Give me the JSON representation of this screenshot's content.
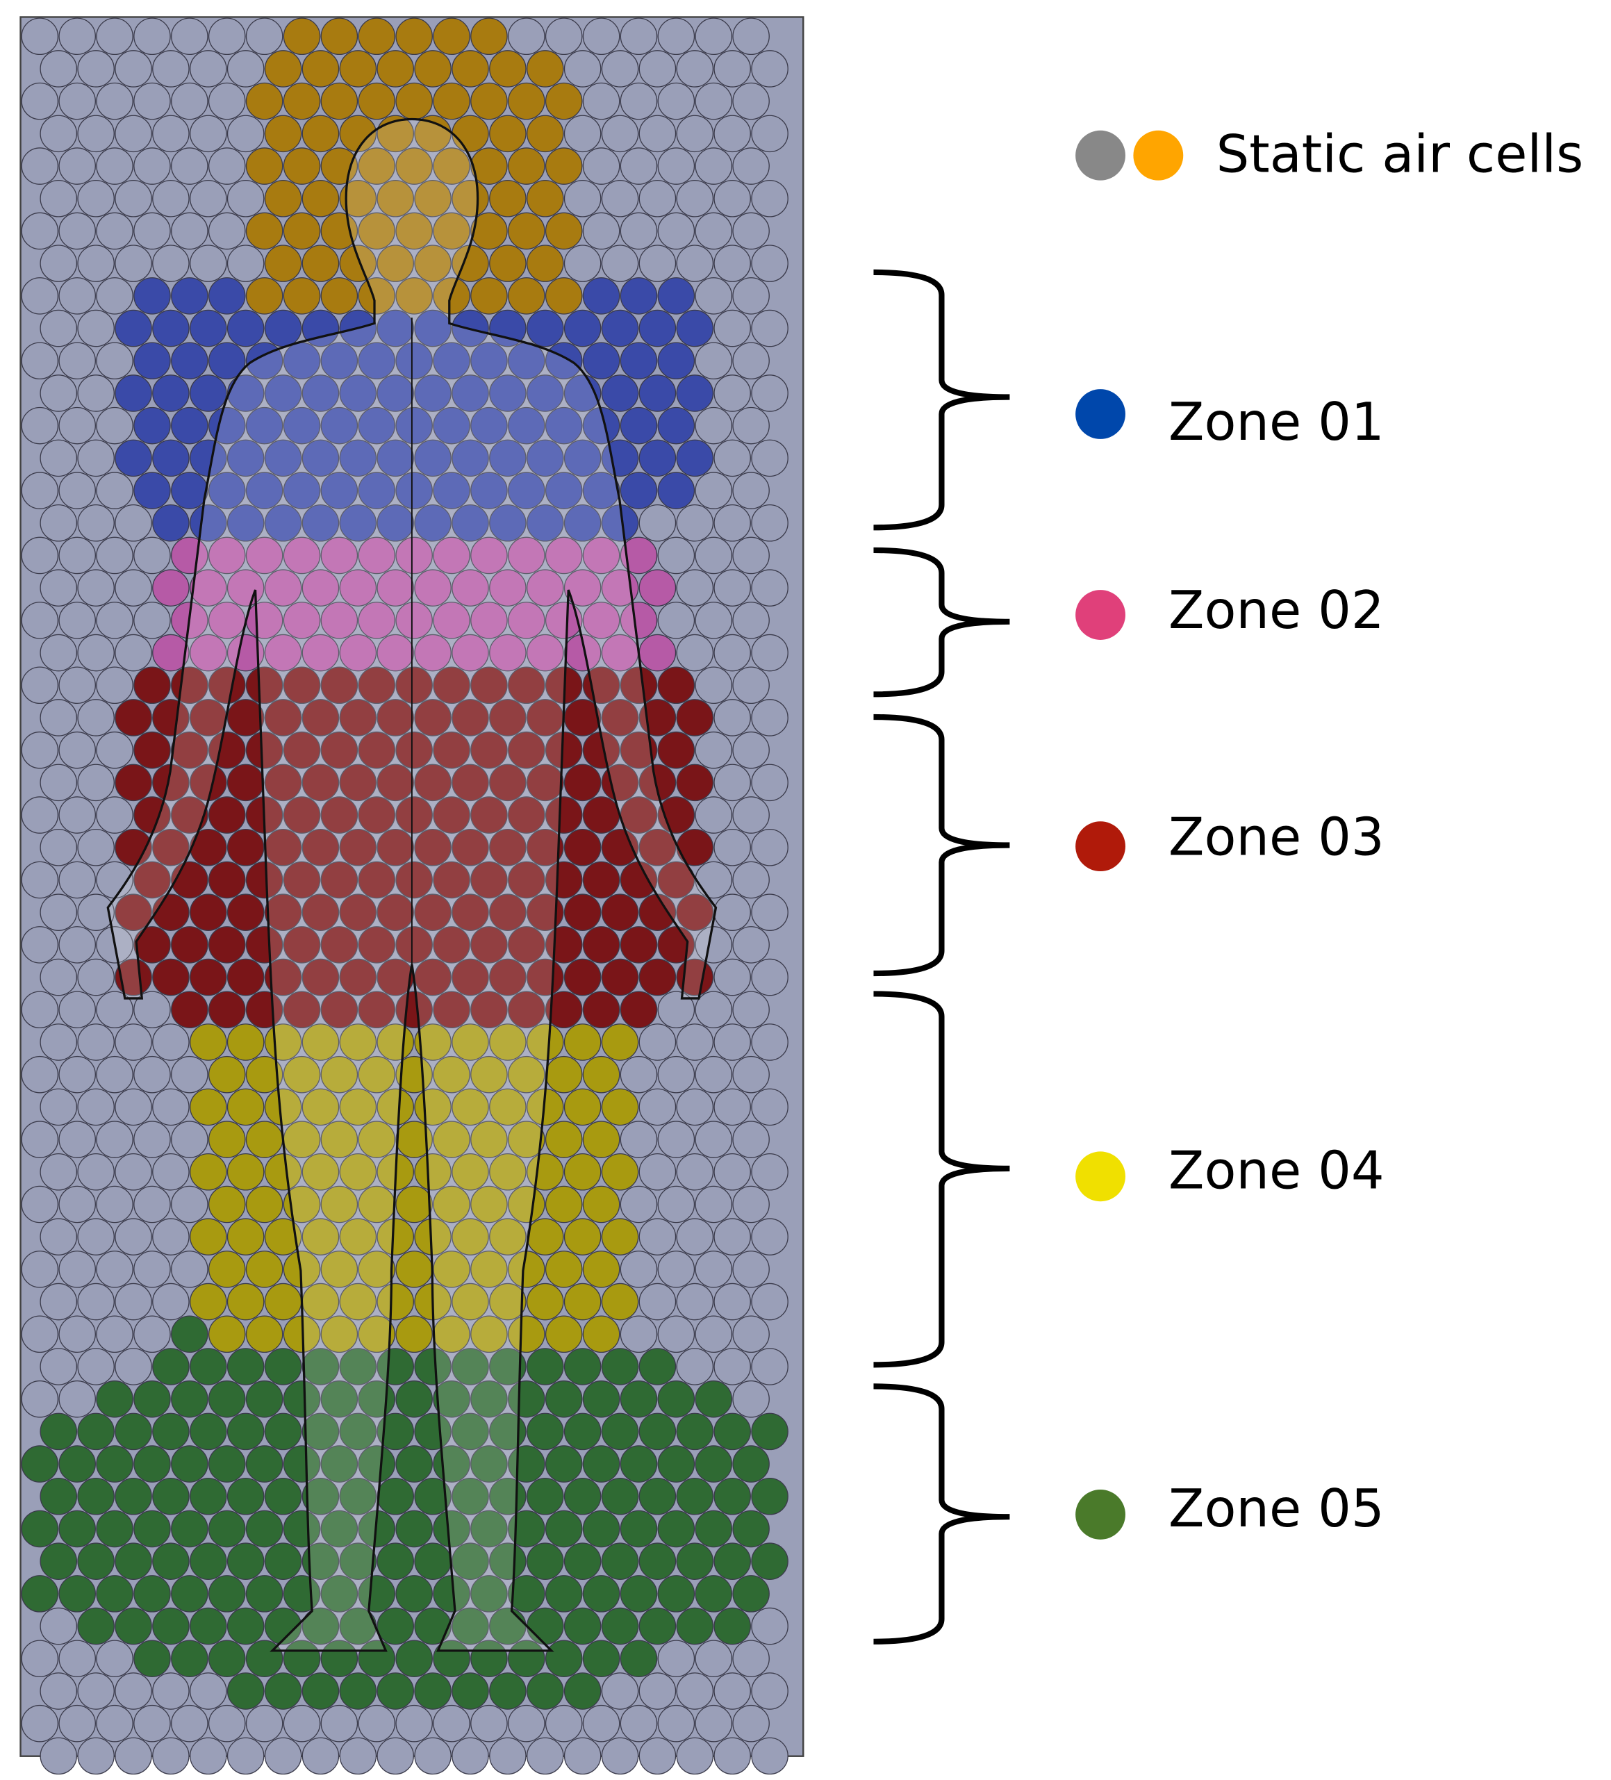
{
  "legend": {
    "static_label": "Static air cells",
    "zones": [
      "Zone 01",
      "Zone 02",
      "Zone 03",
      "Zone 04",
      "Zone 05"
    ]
  }
}
